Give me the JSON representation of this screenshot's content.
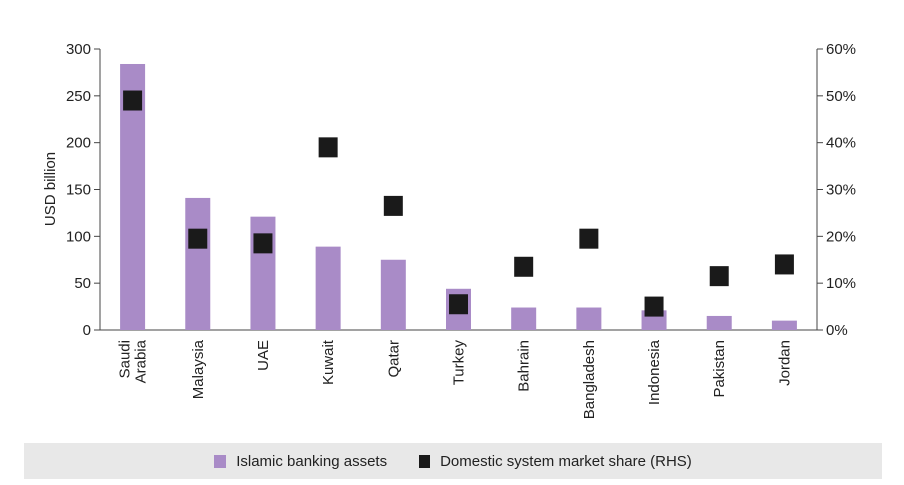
{
  "chart_data": {
    "type": "bar",
    "categories": [
      "Saudi Arabia",
      "Malaysia",
      "UAE",
      "Kuwait",
      "Qatar",
      "Turkey",
      "Bahrain",
      "Bangladesh",
      "Indonesia",
      "Pakistan",
      "Jordan"
    ],
    "category_lines": [
      [
        "Saudi",
        "Arabia"
      ],
      [
        "Malaysia"
      ],
      [
        "UAE"
      ],
      [
        "Kuwait"
      ],
      [
        "Qatar"
      ],
      [
        "Turkey"
      ],
      [
        "Bahrain"
      ],
      [
        "Bangladesh"
      ],
      [
        "Indonesia"
      ],
      [
        "Pakistan"
      ],
      [
        "Jordan"
      ]
    ],
    "series": [
      {
        "name": "Islamic banking assets",
        "type": "bar",
        "axis": "left",
        "color": "#a98bc7",
        "values": [
          284,
          141,
          121,
          89,
          75,
          44,
          24,
          24,
          21,
          15,
          10
        ]
      },
      {
        "name": "Domestic system market share (RHS)",
        "type": "scatter",
        "axis": "right",
        "color": "#1a1a1a",
        "values": [
          49,
          19.5,
          18.5,
          39,
          26.5,
          5.5,
          13.5,
          19.5,
          5,
          11.5,
          14
        ]
      }
    ],
    "ylabel": "USD billion",
    "ylim": [
      0,
      300
    ],
    "yticks": [
      "0",
      "50",
      "100",
      "150",
      "200",
      "250",
      "300"
    ],
    "y2lim": [
      0,
      60
    ],
    "y2ticks": [
      "0%",
      "10%",
      "20%",
      "30%",
      "40%",
      "50%",
      "60%"
    ],
    "grid": false,
    "legend_position": "bottom"
  },
  "legend": {
    "bar_label": "Islamic banking assets",
    "marker_label": "Domestic system market share (RHS)"
  }
}
